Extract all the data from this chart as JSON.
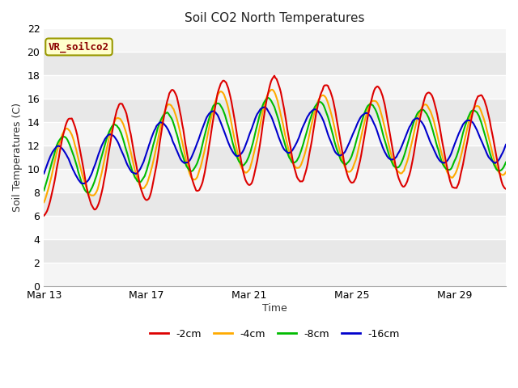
{
  "title": "Soil CO2 North Temperatures",
  "ylabel": "Soil Temperatures (C)",
  "xlabel": "Time",
  "annotation_text": "VR_soilco2",
  "ylim": [
    0,
    22
  ],
  "yticks": [
    0,
    2,
    4,
    6,
    8,
    10,
    12,
    14,
    16,
    18,
    20,
    22
  ],
  "x_tick_labels": [
    "Mar 13",
    "Mar 17",
    "Mar 21",
    "Mar 25",
    "Mar 29"
  ],
  "x_tick_positions": [
    0,
    4,
    8,
    12,
    16
  ],
  "xlim": [
    0,
    18
  ],
  "bg_color": "#ffffff",
  "plot_bg_light": "#f0f0f0",
  "plot_bg_dark": "#e0e0e0",
  "grid_color": "#ffffff",
  "line_colors": {
    "-2cm": "#dd0000",
    "-4cm": "#ffaa00",
    "-8cm": "#00bb00",
    "-16cm": "#0000cc"
  },
  "legend_colors": [
    "#dd0000",
    "#ffaa00",
    "#00bb00",
    "#0000cc"
  ],
  "legend_labels": [
    "-2cm",
    "-4cm",
    "-8cm",
    "-16cm"
  ],
  "n_days": 18,
  "figsize": [
    6.4,
    4.8
  ],
  "dpi": 100
}
